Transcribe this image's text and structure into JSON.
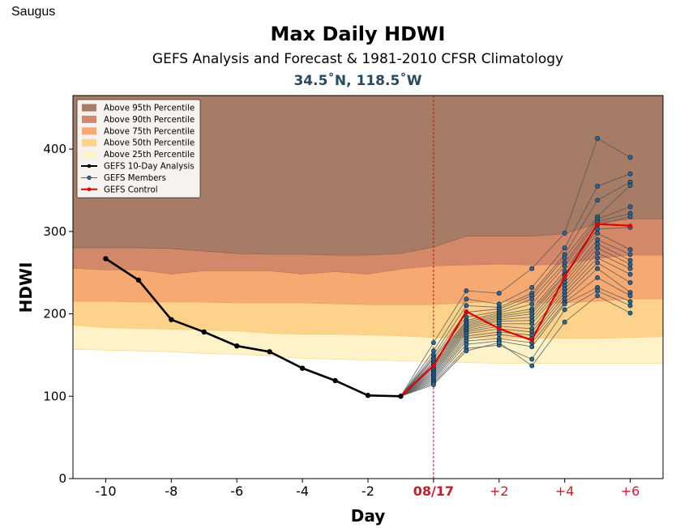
{
  "page": {
    "location_label": "Saugus"
  },
  "chart_data": {
    "type": "line",
    "title": "Max Daily HDWI",
    "subtitle": "GEFS Analysis and Forecast & 1981-2010 CFSR Climatology",
    "coordinates": "34.5˚N, 118.5˚W",
    "xlabel": "Day",
    "ylabel": "HDWI",
    "xlim": [
      -11,
      7
    ],
    "ylim": [
      0,
      465
    ],
    "x_ticks": [
      {
        "value": -10,
        "label": "-10",
        "highlight": false
      },
      {
        "value": -8,
        "label": "-8",
        "highlight": false
      },
      {
        "value": -6,
        "label": "-6",
        "highlight": false
      },
      {
        "value": -4,
        "label": "-4",
        "highlight": false
      },
      {
        "value": -2,
        "label": "-2",
        "highlight": false
      },
      {
        "value": 0,
        "label": "08/17",
        "highlight": true
      },
      {
        "value": 2,
        "label": "+2",
        "highlight": true
      },
      {
        "value": 4,
        "label": "+4",
        "highlight": true
      },
      {
        "value": 6,
        "label": "+6",
        "highlight": true
      }
    ],
    "y_ticks": [
      0,
      100,
      200,
      300,
      400
    ],
    "today_line_x": 0,
    "climatology_x": [
      -11,
      -10,
      -9,
      -8,
      -7,
      -6,
      -5,
      -4,
      -3,
      -2,
      -1,
      0,
      1,
      2,
      3,
      4,
      5,
      6,
      7
    ],
    "percentile_bands": [
      {
        "name": "Above 95th Percentile",
        "color": "#a67c66",
        "edge": "#8a4a2a",
        "values": [
          280,
          280,
          280,
          279,
          276,
          273,
          272,
          272,
          271,
          271,
          273,
          281,
          294,
          294,
          294,
          297,
          310,
          315,
          315
        ]
      },
      {
        "name": "Above 90th Percentile",
        "color": "#d4886a",
        "edge": "#c86a3c",
        "values": [
          255,
          253,
          253,
          248,
          252,
          252,
          252,
          248,
          251,
          248,
          254,
          258,
          259,
          260,
          259,
          260,
          267,
          271,
          271
        ]
      },
      {
        "name": "Above 75th Percentile",
        "color": "#f6aa72",
        "edge": "#e88a3a",
        "values": [
          215,
          215,
          214,
          214,
          214,
          213,
          213,
          213,
          212,
          211,
          211,
          211,
          213,
          215,
          213,
          213,
          215,
          218,
          218
        ]
      },
      {
        "name": "Above 50th Percentile",
        "color": "#fdd38b",
        "edge": "#f4bd5e",
        "values": [
          186,
          183,
          182,
          181,
          180,
          179,
          176,
          175,
          175,
          174,
          173,
          171,
          171,
          170,
          170,
          170,
          170,
          171,
          172
        ]
      },
      {
        "name": "Above 25th Percentile",
        "color": "#fef3c8",
        "edge": "#f6dca0",
        "values": [
          157,
          156,
          155,
          154,
          152,
          151,
          149,
          146,
          145,
          144,
          143,
          142,
          141,
          140,
          140,
          140,
          140,
          140,
          140
        ]
      }
    ],
    "analysis": {
      "name": "GEFS 10-Day Analysis",
      "color": "#000000",
      "x": [
        -10,
        -9,
        -8,
        -7,
        -6,
        -5,
        -4,
        -3,
        -2,
        -1
      ],
      "y": [
        267,
        241,
        193,
        178,
        161,
        154,
        134,
        119,
        101,
        100
      ]
    },
    "control": {
      "name": "GEFS Control",
      "color": "#e00000",
      "x": [
        -1,
        0,
        1,
        2,
        3,
        4,
        5,
        6
      ],
      "y": [
        100,
        137,
        203,
        182,
        168,
        245,
        309,
        307
      ]
    },
    "members": {
      "name": "GEFS Members",
      "color": "#505050",
      "marker_color": "#2a6a99",
      "x": [
        -1,
        0,
        1,
        2,
        3,
        4,
        5,
        6
      ],
      "series": [
        [
          100,
          165,
          228,
          225,
          255,
          298,
          413,
          390
        ],
        [
          100,
          155,
          218,
          212,
          232,
          280,
          355,
          370
        ],
        [
          100,
          150,
          210,
          208,
          225,
          272,
          338,
          360
        ],
        [
          100,
          147,
          202,
          206,
          222,
          268,
          318,
          356
        ],
        [
          100,
          145,
          196,
          203,
          218,
          262,
          315,
          330
        ],
        [
          100,
          142,
          192,
          201,
          212,
          258,
          312,
          322
        ],
        [
          100,
          140,
          190,
          199,
          206,
          252,
          308,
          318
        ],
        [
          100,
          138,
          188,
          197,
          203,
          248,
          303,
          305
        ],
        [
          100,
          136,
          186,
          195,
          200,
          246,
          298,
          278
        ],
        [
          100,
          134,
          184,
          193,
          196,
          242,
          290,
          272
        ],
        [
          100,
          132,
          182,
          191,
          192,
          238,
          285,
          265
        ],
        [
          100,
          130,
          180,
          188,
          188,
          234,
          280,
          260
        ],
        [
          100,
          128,
          178,
          185,
          182,
          230,
          274,
          255
        ],
        [
          100,
          126,
          176,
          182,
          178,
          226,
          268,
          248
        ],
        [
          100,
          124,
          173,
          178,
          174,
          222,
          262,
          238
        ],
        [
          100,
          122,
          170,
          175,
          170,
          218,
          255,
          226
        ],
        [
          100,
          120,
          167,
          170,
          165,
          214,
          244,
          222
        ],
        [
          100,
          118,
          163,
          167,
          160,
          212,
          232,
          215
        ],
        [
          100,
          116,
          158,
          162,
          145,
          205,
          228,
          210
        ],
        [
          100,
          114,
          155,
          165,
          137,
          190,
          222,
          201
        ]
      ]
    },
    "legend": {
      "position": "top-left",
      "entries": [
        {
          "label": "Above 95th Percentile",
          "kind": "patch",
          "color": "#a67c66"
        },
        {
          "label": "Above 90th Percentile",
          "kind": "patch",
          "color": "#d4886a"
        },
        {
          "label": "Above 75th Percentile",
          "kind": "patch",
          "color": "#f6aa72"
        },
        {
          "label": "Above 50th Percentile",
          "kind": "patch",
          "color": "#fdd38b"
        },
        {
          "label": "Above 25th Percentile",
          "kind": "patch",
          "color": "#fef3c8"
        },
        {
          "label": "GEFS 10-Day Analysis",
          "kind": "line",
          "color": "#000000",
          "marker": "#000000"
        },
        {
          "label": "GEFS Members",
          "kind": "line",
          "color": "#505050",
          "marker": "#2a6a99"
        },
        {
          "label": "GEFS Control",
          "kind": "line",
          "color": "#e00000",
          "marker": "#e00000"
        }
      ]
    },
    "colors": {
      "today_line": "#c01010",
      "forecast_tick_label": "#c0202a",
      "axis_text": "#000000"
    }
  }
}
